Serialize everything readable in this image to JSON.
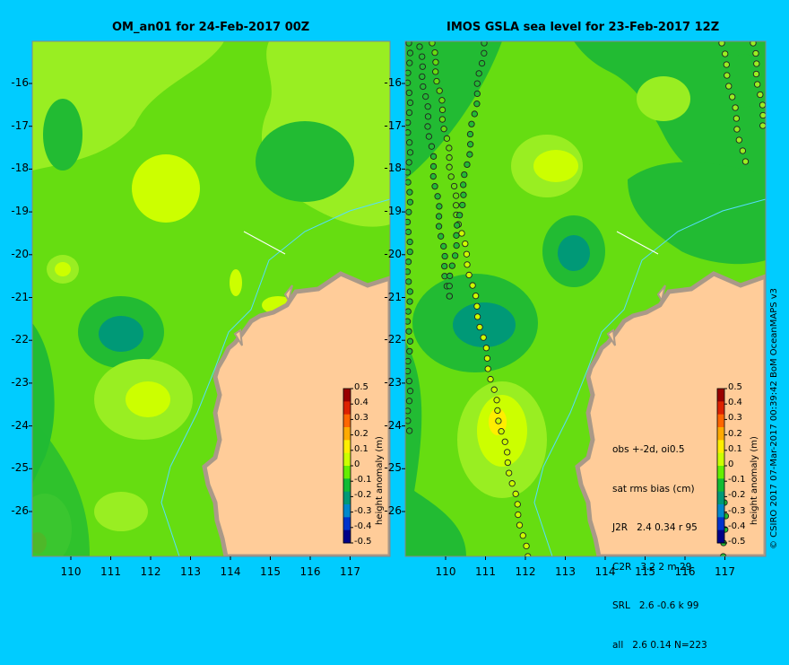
{
  "titles": {
    "left": "OM_an01 for 24-Feb-2017 00Z",
    "right": "IMOS GSLA sea level  for 23-Feb-2017 12Z"
  },
  "axes": {
    "lat_labels": [
      "-16",
      "-17",
      "-18",
      "-19",
      "-20",
      "-21",
      "-22",
      "-23",
      "-24",
      "-25",
      "-26"
    ],
    "lon_labels": [
      "110",
      "111",
      "112",
      "113",
      "114",
      "115",
      "116",
      "117"
    ]
  },
  "colorbar": {
    "title": "height anomaly (m)",
    "labels": [
      "0.5",
      "0.4",
      "0.3",
      "0.2",
      "0.1",
      "0",
      "-0.1",
      "-0.2",
      "-0.3",
      "-0.4",
      "-0.5"
    ],
    "colors": [
      "#990000",
      "#DD2200",
      "#FF6600",
      "#FFAA00",
      "#FFEE00",
      "#CCFF00",
      "#66EE00",
      "#11BB33",
      "#009977",
      "#0088CC",
      "#0033CC",
      "#000088"
    ]
  },
  "stats": {
    "lines": [
      "obs +-2d, oi0.5",
      "sat rms bias (cm)",
      "J2R   2.4 0.34 r 95",
      "C2R   3.2 2 m 29",
      "SRL   2.6 -0.6 k 99",
      "all   2.6 0.14 N=223"
    ]
  },
  "credit": "© CSIRO 2017   07-Mar-2017 00:39:42 BoM OceanMAPS v3",
  "colors": {
    "background": "#00CCFF",
    "land": "#FFCC99",
    "coast": "#AA9988",
    "base_sea": "#66DD11",
    "mid_green": "#22BB33",
    "light_green": "#99EE22",
    "yellow_green": "#CCFF00"
  }
}
